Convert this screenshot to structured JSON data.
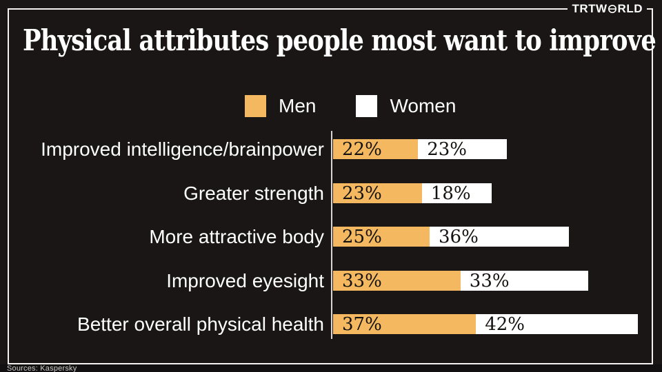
{
  "logo": {
    "brand": "TRT",
    "world_pre": "W",
    "world_post": "RLD",
    "o_icon": "globe-icon"
  },
  "header": {
    "title": "Physical attributes people most want to improve"
  },
  "chart_data": {
    "type": "bar",
    "orientation": "horizontal",
    "stacked": true,
    "title": "Physical attributes people most want to improve",
    "categories": [
      "Improved intelligence/brainpower",
      "Greater strength",
      "More attractive body",
      "Improved eyesight",
      "Better overall physical health"
    ],
    "series": [
      {
        "name": "Men",
        "color": "#f4b860",
        "values": [
          22,
          23,
          25,
          33,
          37
        ]
      },
      {
        "name": "Women",
        "color": "#ffffff",
        "values": [
          23,
          18,
          36,
          33,
          42
        ]
      }
    ],
    "value_suffix": "%",
    "legend_position": "top",
    "grid": false,
    "axis_baseline": true
  },
  "footer": {
    "source": "Sources: Kaspersky"
  },
  "colors": {
    "background": "#1a1616",
    "frame_border": "#f4f2ef",
    "men": "#f4b860",
    "women": "#ffffff",
    "value_text": "#141210",
    "label_text": "#ffffff",
    "axis_line": "#d9d7d5"
  }
}
